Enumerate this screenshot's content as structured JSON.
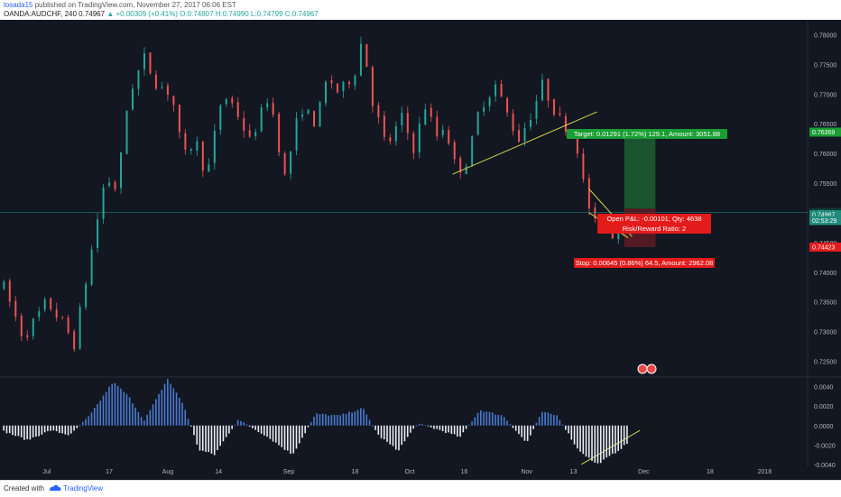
{
  "header": {
    "user": "losada15",
    "published": "published on TradingView.com, November 27, 2017 06:06 EST",
    "symbol_line": "OANDA:AUDCHF, 240",
    "price": "0.74967",
    "change": "+0.00309 (+0.41%)",
    "ohlc": "O:0.74807 H:0.74990 L:0.74799 C:0.74967"
  },
  "footer": {
    "created_with": "Created with",
    "brand": "TradingView"
  },
  "colors": {
    "background": "#131722",
    "up": "#26a69a",
    "down": "#ef5350",
    "hist_pos": "#4a7bd1",
    "hist_neg": "#e9edf2",
    "trendline": "#d4d44e",
    "target_zone": "#1e6b36",
    "stop_zone": "#6b1c24",
    "target_label": "#199e33",
    "stop_label": "#e31b1b"
  },
  "chart_data": [
    {
      "type": "candlestick",
      "price_axis": {
        "ticks": [
          "0.78000",
          "0.77500",
          "0.77000",
          "0.76500",
          "0.76000",
          "0.75500",
          "0.75000",
          "0.74500",
          "0.74000",
          "0.73500",
          "0.73000",
          "0.72500"
        ],
        "ylim": [
          0.7225,
          0.7825
        ]
      },
      "time_axis": {
        "ticks": [
          "Jul",
          "17",
          "Aug",
          "14",
          "Sep",
          "18",
          "Oct",
          "16",
          "Nov",
          "13",
          "Dec",
          "18",
          "2018"
        ]
      },
      "price_labels": {
        "target": "0.76359",
        "close_1": "0.75008",
        "close_2": "0.74967",
        "countdown": "02:53:29",
        "stop": "0.74423"
      },
      "position": {
        "target_text": "Target: 0.01291 (1.72%) 129.1, Amount: 3051.88",
        "open_pl_text": "Open P&L: -0.00101, Qty: 4638",
        "rr_text": "Risk/Reward Ratio: 2",
        "stop_text": "Stop: 0.00645 (0.86%) 64.5, Amount: 2962.08",
        "entry": 0.7507,
        "target": 0.76359,
        "stop": 0.74423
      },
      "price_path": [
        [
          "2017-06-20",
          0.7375
        ],
        [
          "2017-06-25",
          0.729
        ],
        [
          "2017-07-01",
          0.735
        ],
        [
          "2017-07-05",
          0.7315
        ],
        [
          "2017-07-08",
          0.728
        ],
        [
          "2017-07-12",
          0.742
        ],
        [
          "2017-07-16",
          0.756
        ],
        [
          "2017-07-19",
          0.754
        ],
        [
          "2017-07-22",
          0.77
        ],
        [
          "2017-07-26",
          0.776
        ],
        [
          "2017-07-29",
          0.772
        ],
        [
          "2017-08-02",
          0.77
        ],
        [
          "2017-08-05",
          0.759
        ],
        [
          "2017-08-08",
          0.7625
        ],
        [
          "2017-08-11",
          0.756
        ],
        [
          "2017-08-15",
          0.77
        ],
        [
          "2017-08-18",
          0.768
        ],
        [
          "2017-08-22",
          0.762
        ],
        [
          "2017-08-27",
          0.77
        ],
        [
          "2017-08-31",
          0.756
        ],
        [
          "2017-09-04",
          0.768
        ],
        [
          "2017-09-08",
          0.765
        ],
        [
          "2017-09-11",
          0.773
        ],
        [
          "2017-09-14",
          0.77
        ],
        [
          "2017-09-18",
          0.774
        ],
        [
          "2017-09-20",
          0.78
        ],
        [
          "2017-09-22",
          0.77
        ],
        [
          "2017-09-26",
          0.761
        ],
        [
          "2017-09-30",
          0.766
        ],
        [
          "2017-10-03",
          0.761
        ],
        [
          "2017-10-06",
          0.768
        ],
        [
          "2017-10-09",
          0.763
        ],
        [
          "2017-10-11",
          0.765
        ],
        [
          "2017-10-14",
          0.757
        ],
        [
          "2017-10-17",
          0.759
        ],
        [
          "2017-10-20",
          0.768
        ],
        [
          "2017-10-24",
          0.7715
        ],
        [
          "2017-10-28",
          0.765
        ],
        [
          "2017-10-30",
          0.7625
        ],
        [
          "2017-11-02",
          0.7665
        ],
        [
          "2017-11-05",
          0.7715
        ],
        [
          "2017-11-07",
          0.769
        ],
        [
          "2017-11-09",
          0.766
        ],
        [
          "2017-11-12",
          0.764
        ],
        [
          "2017-11-14",
          0.761
        ],
        [
          "2017-11-16",
          0.753
        ],
        [
          "2017-11-19",
          0.747
        ],
        [
          "2017-11-21",
          0.75
        ],
        [
          "2017-11-23",
          0.7465
        ],
        [
          "2017-11-25",
          0.748
        ],
        [
          "2017-11-27",
          0.7497
        ]
      ],
      "indicator": {
        "type": "histogram",
        "ticks": [
          "0.0040",
          "0.0020",
          "0.0000",
          "-0.0020",
          "-0.0040"
        ],
        "ylim": [
          -0.0042,
          0.0049
        ],
        "path": [
          [
            "2017-06-20",
            -0.0006
          ],
          [
            "2017-06-26",
            -0.0015
          ],
          [
            "2017-07-02",
            -0.0005
          ],
          [
            "2017-07-07",
            -0.001
          ],
          [
            "2017-07-12",
            0.001
          ],
          [
            "2017-07-18",
            0.0045
          ],
          [
            "2017-07-22",
            0.003
          ],
          [
            "2017-07-26",
            0.0005
          ],
          [
            "2017-08-01",
            0.0048
          ],
          [
            "2017-08-05",
            0.0022
          ],
          [
            "2017-08-09",
            -0.0025
          ],
          [
            "2017-08-13",
            -0.003
          ],
          [
            "2017-08-19",
            0.0006
          ],
          [
            "2017-08-26",
            -0.001
          ],
          [
            "2017-09-02",
            -0.003
          ],
          [
            "2017-09-08",
            0.0012
          ],
          [
            "2017-09-14",
            0.001
          ],
          [
            "2017-09-20",
            0.0018
          ],
          [
            "2017-09-24",
            -0.001
          ],
          [
            "2017-09-29",
            -0.0026
          ],
          [
            "2017-10-04",
            0.0002
          ],
          [
            "2017-10-10",
            -0.0005
          ],
          [
            "2017-10-15",
            -0.0012
          ],
          [
            "2017-10-20",
            0.0016
          ],
          [
            "2017-10-26",
            0.001
          ],
          [
            "2017-11-01",
            -0.0018
          ],
          [
            "2017-11-05",
            0.0014
          ],
          [
            "2017-11-09",
            0.001
          ],
          [
            "2017-11-14",
            -0.0024
          ],
          [
            "2017-11-19",
            -0.004
          ],
          [
            "2017-11-23",
            -0.003
          ],
          [
            "2017-11-27",
            -0.0018
          ]
        ]
      }
    }
  ]
}
